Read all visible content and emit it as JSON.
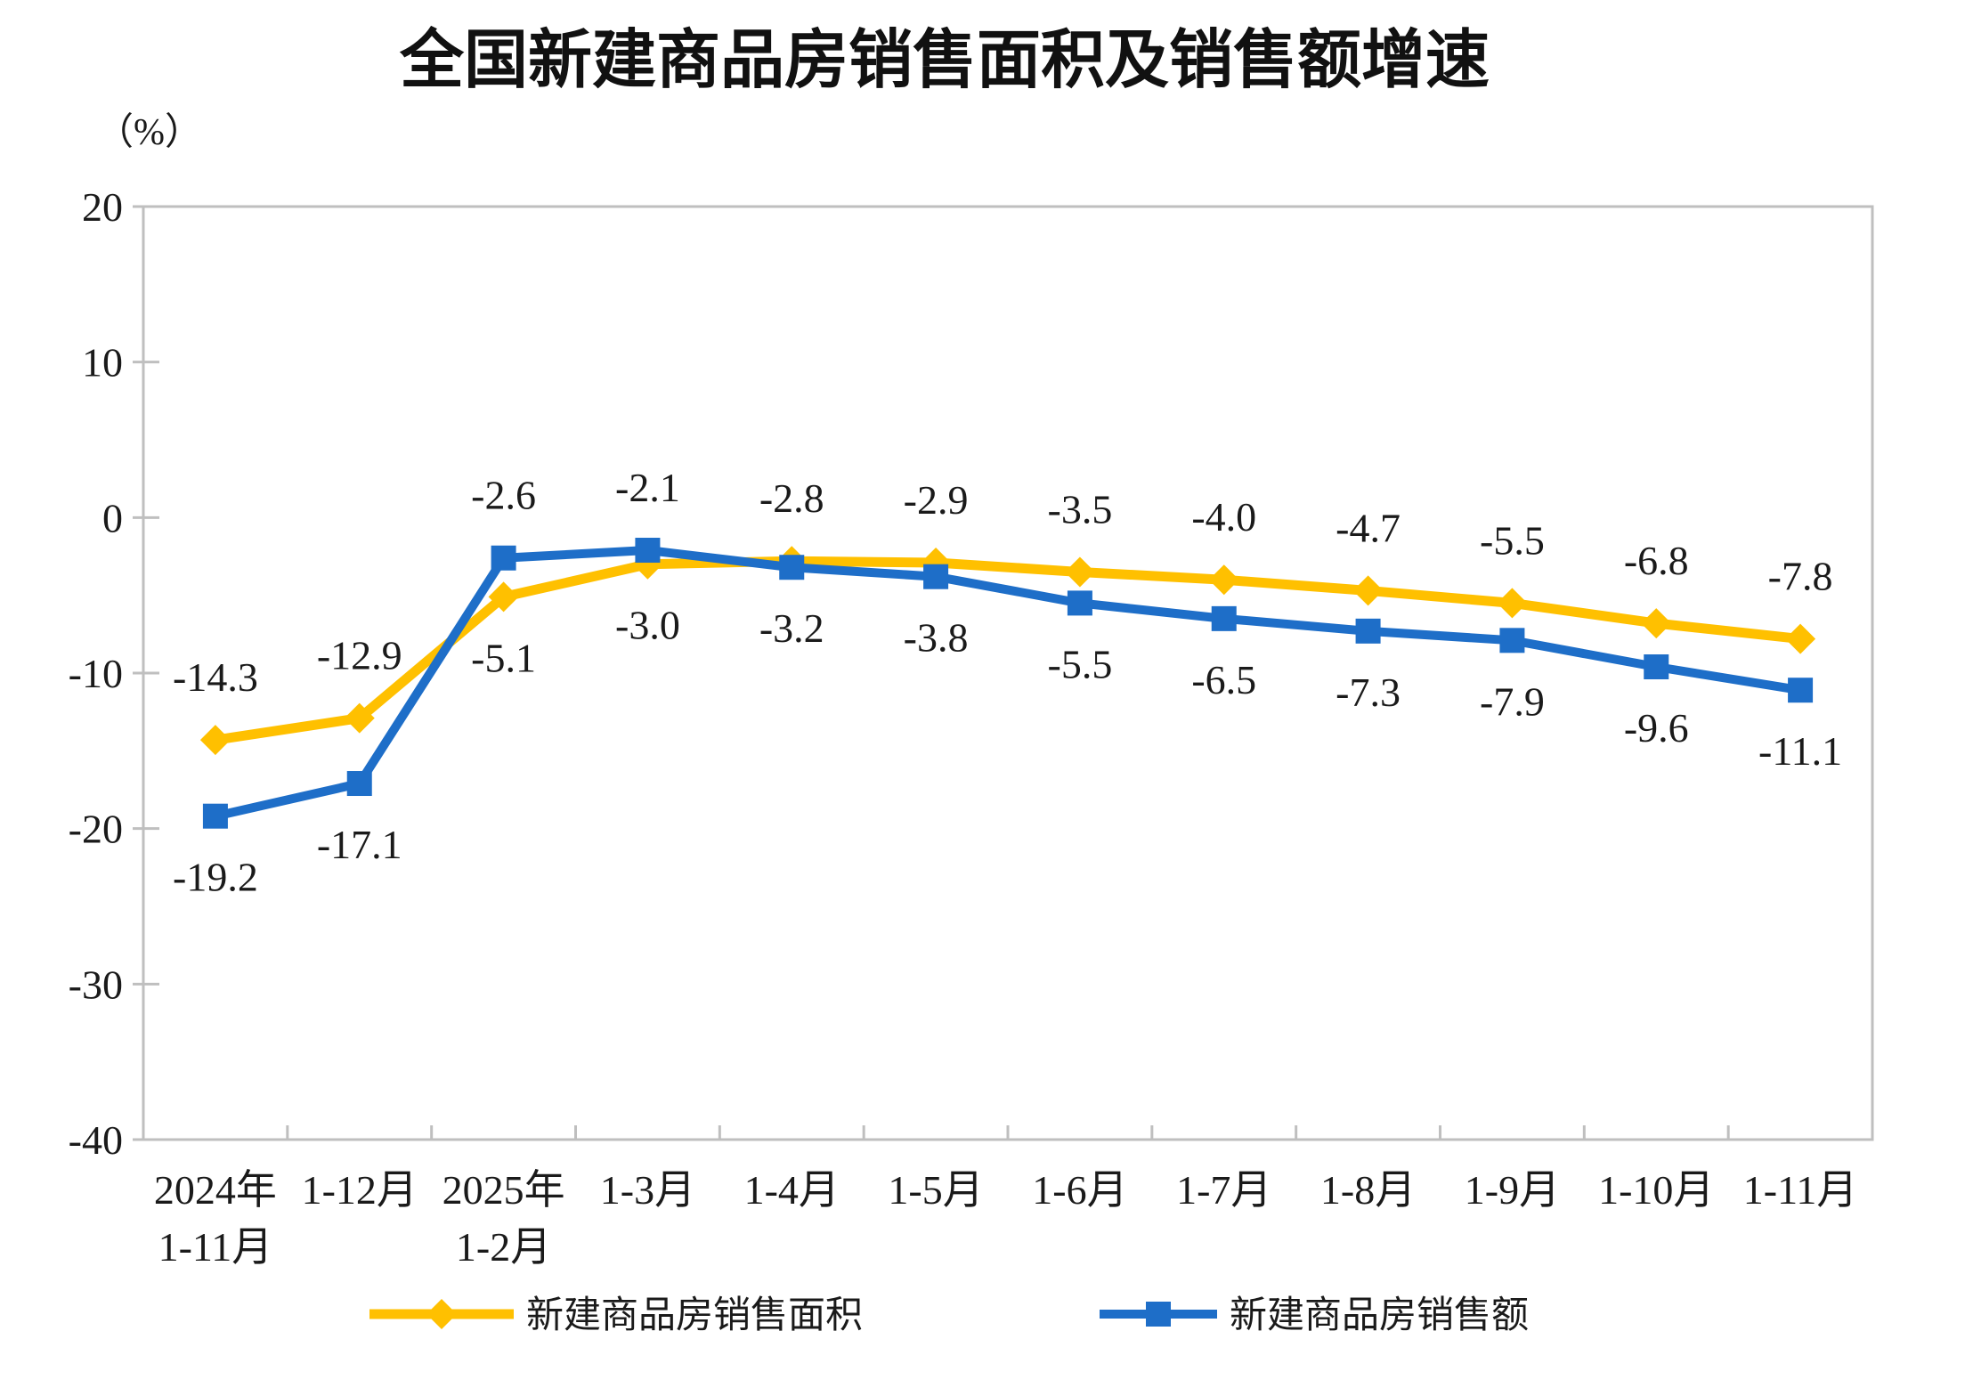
{
  "page": {
    "background": "#ffffff"
  },
  "chart_data": {
    "type": "line",
    "title": "全国新建商品房销售面积及销售额增速",
    "unit_label": "（%）",
    "categories": [
      [
        "2024年",
        "1-11月"
      ],
      [
        "1-12月"
      ],
      [
        "2025年",
        "1-2月"
      ],
      [
        "1-3月"
      ],
      [
        "1-4月"
      ],
      [
        "1-5月"
      ],
      [
        "1-6月"
      ],
      [
        "1-7月"
      ],
      [
        "1-8月"
      ],
      [
        "1-9月"
      ],
      [
        "1-10月"
      ],
      [
        "1-11月"
      ]
    ],
    "series": [
      {
        "id": "sales-area",
        "name": "新建商品房销售面积",
        "color": "#FFC000",
        "marker": "diamond",
        "values": [
          -14.3,
          -12.9,
          -5.1,
          -3.0,
          -2.8,
          -2.9,
          -3.5,
          -4.0,
          -4.7,
          -5.5,
          -6.8,
          -7.8
        ]
      },
      {
        "id": "sales-value",
        "name": "新建商品房销售额",
        "color": "#1E6EC8",
        "marker": "square",
        "values": [
          -19.2,
          -17.1,
          -2.6,
          -2.1,
          -3.2,
          -3.8,
          -5.5,
          -6.5,
          -7.3,
          -7.9,
          -9.6,
          -11.1
        ]
      }
    ],
    "y_axis": {
      "min": -40,
      "max": 20,
      "ticks": [
        20,
        10,
        0,
        -10,
        -20,
        -30,
        -40
      ]
    },
    "grid": false,
    "legend_position": "bottom",
    "colors": {
      "axis": "#BFBFBF",
      "label": "#1A1A1A",
      "series_area": "#FFC000",
      "series_value": "#1E6EC8"
    }
  }
}
